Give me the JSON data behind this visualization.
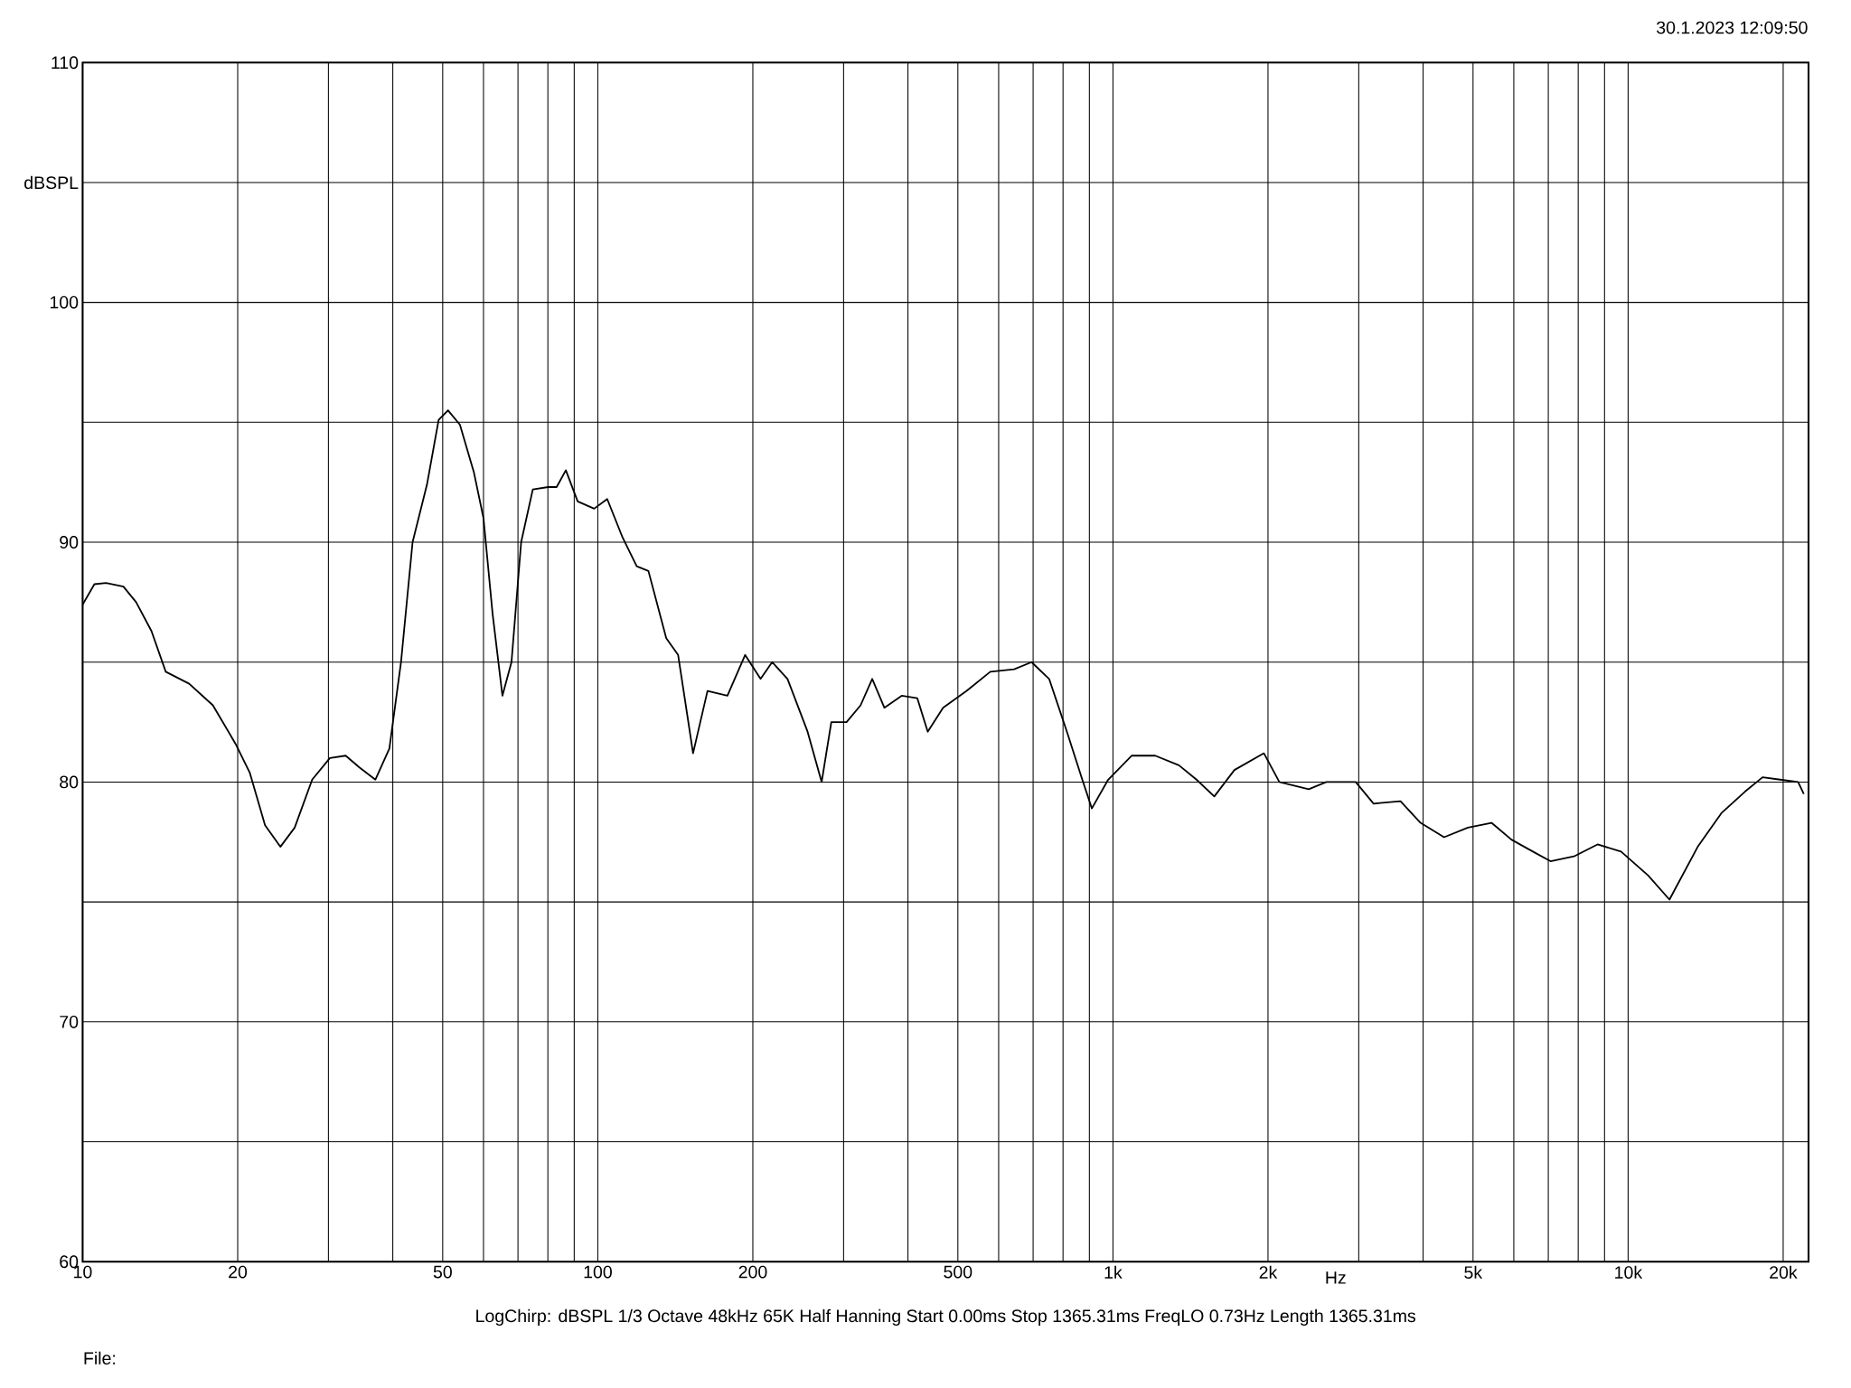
{
  "chart_data": {
    "type": "line",
    "xlabel": "Hz",
    "x": [
      10,
      10.54,
      11.1,
      12.0,
      12.7,
      13.6,
      14.5,
      16.1,
      17.9,
      19.8,
      21.1,
      22.6,
      24.2,
      25.8,
      27.9,
      30.2,
      32.4,
      34.5,
      37.0,
      39.4,
      41.5,
      43.7,
      46.6,
      49.1,
      51.2,
      54.0,
      57.5,
      60.0,
      62.5,
      65.3,
      68.0,
      71.0,
      74.8,
      80.1,
      83.2,
      86.7,
      91.4,
      98.4,
      104.3,
      111.7,
      119,
      125.4,
      135.8,
      143.2,
      153.1,
      163.3,
      178.5,
      193.2,
      207,
      218,
      233.5,
      255.4,
      272,
      284,
      304,
      323.7,
      341,
      360,
      389,
      417,
      437,
      468,
      520,
      578,
      643,
      695,
      752,
      814,
      872,
      910,
      979,
      1088,
      1208,
      1343,
      1453,
      1573,
      1721,
      1964,
      2104,
      2399,
      2596,
      2960,
      3206,
      3616,
      3955,
      4393,
      4886,
      5431,
      5936,
      6534,
      7068,
      7852,
      8723,
      9690,
      10940,
      12030,
      13650,
      15170,
      16860,
      18240,
      19730,
      21380,
      21930
    ],
    "series": [
      {
        "color": "#000000",
        "values": [
          87.4,
          88.25,
          88.3,
          88.15,
          87.5,
          86.3,
          84.6,
          84.1,
          83.2,
          81.6,
          80.4,
          78.2,
          77.3,
          78.1,
          80.1,
          81.0,
          81.1,
          80.6,
          80.1,
          81.4,
          85.0,
          90.0,
          92.4,
          95.1,
          95.5,
          94.9,
          92.9,
          91.0,
          87.0,
          83.6,
          85.0,
          90.0,
          92.2,
          92.3,
          92.3,
          93.0,
          91.7,
          91.4,
          91.8,
          90.2,
          89.0,
          88.8,
          86.0,
          85.3,
          81.2,
          83.8,
          83.6,
          85.3,
          84.3,
          85.0,
          84.3,
          82.1,
          80.0,
          82.5,
          82.5,
          83.2,
          84.3,
          83.1,
          83.6,
          83.5,
          82.1,
          83.1,
          83.8,
          84.6,
          84.7,
          85.0,
          84.3,
          82.1,
          80.1,
          78.9,
          80.1,
          81.1,
          81.1,
          80.7,
          80.1,
          79.4,
          80.5,
          81.2,
          80.0,
          79.7,
          80.0,
          80.0,
          79.1,
          79.2,
          78.3,
          77.7,
          78.1,
          78.3,
          77.6,
          77.1,
          76.7,
          76.9,
          77.4,
          77.1,
          76.1,
          75.1,
          77.3,
          78.7,
          79.6,
          80.2,
          80.1,
          80.0,
          79.5
        ]
      }
    ],
    "log": "x",
    "xlim": [
      10,
      22400
    ],
    "xticks": [
      10,
      20,
      {
        "value": 30,
        "label": null
      },
      {
        "value": 40,
        "label": null
      },
      50,
      {
        "value": 60,
        "label": null
      },
      {
        "value": 70,
        "label": null
      },
      {
        "value": 80,
        "label": null
      },
      {
        "value": 90,
        "label": null
      },
      100,
      200,
      {
        "value": 300,
        "label": null
      },
      {
        "value": 400,
        "label": null
      },
      500,
      {
        "value": 600,
        "label": null
      },
      {
        "value": 700,
        "label": null
      },
      {
        "value": 800,
        "label": null
      },
      {
        "value": 900,
        "label": null
      },
      {
        "value": 1000,
        "label": "1k"
      },
      {
        "value": 2000,
        "label": "2k"
      },
      {
        "value": 3000,
        "label": null
      },
      {
        "value": 4000,
        "label": null
      },
      {
        "value": 5000,
        "label": "5k"
      },
      {
        "value": 6000,
        "label": null
      },
      {
        "value": 7000,
        "label": null
      },
      {
        "value": 8000,
        "label": null
      },
      {
        "value": 9000,
        "label": null
      },
      {
        "value": 10000,
        "label": "10k"
      },
      {
        "value": 20000,
        "label": "20k"
      }
    ],
    "ylim": [
      60,
      110
    ],
    "yticks": [
      60,
      {
        "value": 65,
        "label": null
      },
      70,
      {
        "value": 75,
        "label": null
      },
      80,
      {
        "value": 85,
        "label": null
      },
      90,
      {
        "value": 95,
        "label": null
      },
      100,
      {
        "value": 105,
        "label": "dBSPL"
      },
      110
    ],
    "grid": true,
    "annotations": [
      "30.1.2023 12:09:50",
      "LogChirp:  dBSPL   1/3 Octave   48kHz   65K   Half Hanning   Start 0.00ms   Stop 1365.31ms   FreqLO 0.73Hz   Length 1365.31ms",
      "File:"
    ]
  }
}
